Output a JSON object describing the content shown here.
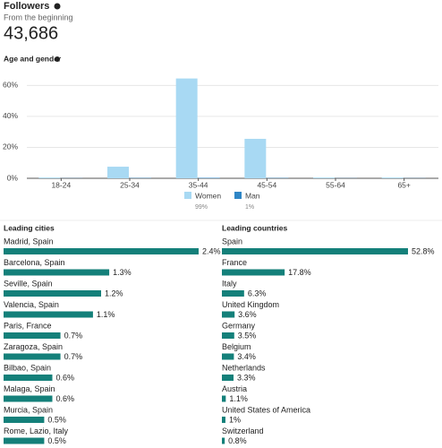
{
  "header": {
    "title": "Followers",
    "subtitle": "From the beginning",
    "total": "43,686"
  },
  "chart_data": [
    {
      "type": "bar",
      "title": "Age and gender",
      "categories": [
        "18-24",
        "25-34",
        "35-44",
        "45-54",
        "55-64",
        "65+"
      ],
      "series": [
        {
          "name": "Women",
          "color": "#a8d9f3",
          "share": "99%",
          "values": [
            0.5,
            7.5,
            64.5,
            25.5,
            0.5,
            0.5
          ]
        },
        {
          "name": "Man",
          "color": "#2f86c6",
          "share": "1%",
          "values": [
            0.1,
            0.2,
            0.3,
            0.2,
            0.1,
            0.1
          ]
        }
      ],
      "ylim": [
        0,
        66
      ],
      "yticks": [
        {
          "value": 0,
          "label": "0%"
        },
        {
          "value": 20,
          "label": "20%"
        },
        {
          "value": 40,
          "label": "40%"
        },
        {
          "value": 60,
          "label": "60%"
        }
      ],
      "grid": true
    },
    {
      "type": "barh",
      "title": "Leading cities",
      "color": "#14807a",
      "categories": [
        "Madrid, Spain",
        "Barcelona, Spain",
        "Seville, Spain",
        "Valencia, Spain",
        "Paris, France",
        "Zaragoza, Spain",
        "Bilbao, Spain",
        "Malaga, Spain",
        "Murcia, Spain",
        "Rome, Lazio, Italy"
      ],
      "values": [
        2.4,
        1.3,
        1.2,
        1.1,
        0.7,
        0.7,
        0.6,
        0.6,
        0.5,
        0.5
      ],
      "value_labels": [
        "2.4%",
        "1.3%",
        "1.2%",
        "1.1%",
        "0.7%",
        "0.7%",
        "0.6%",
        "0.6%",
        "0.5%",
        "0.5%"
      ],
      "xlim": [
        0,
        2.4
      ]
    },
    {
      "type": "barh",
      "title": "Leading countries",
      "color": "#14807a",
      "categories": [
        "Spain",
        "France",
        "Italy",
        "United Kingdom",
        "Germany",
        "Belgium",
        "Netherlands",
        "Austria",
        "United States of America",
        "Switzerland"
      ],
      "values": [
        52.8,
        17.8,
        6.3,
        3.6,
        3.5,
        3.4,
        3.3,
        1.1,
        1,
        0.8
      ],
      "value_labels": [
        "52.8%",
        "17.8%",
        "6.3%",
        "3.6%",
        "3.5%",
        "3.4%",
        "3.3%",
        "1.1%",
        "1%",
        "0.8%"
      ],
      "xlim": [
        0,
        52.8
      ]
    }
  ]
}
